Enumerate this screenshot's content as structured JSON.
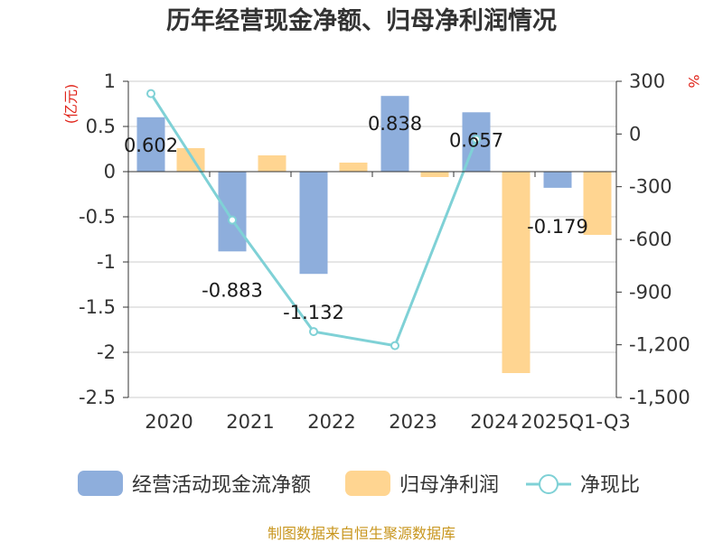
{
  "title": "历年经营现金净额、归母净利润情况",
  "source": "制图数据来自恒生聚源数据库",
  "chart_data": {
    "type": "bar",
    "categories": [
      "2020",
      "2021",
      "2022",
      "2023",
      "2024",
      "2025Q1-Q3"
    ],
    "series": [
      {
        "name": "经营活动现金流净额",
        "kind": "bar",
        "axis": "left",
        "color": "#8eaedc",
        "values": [
          0.602,
          -0.883,
          -1.132,
          0.838,
          0.657,
          -0.179
        ],
        "labels": [
          "0.602",
          "-0.883",
          "-1.132",
          "0.838",
          "0.657",
          "-0.179"
        ]
      },
      {
        "name": "归母净利润",
        "kind": "bar",
        "axis": "left",
        "color": "#ffd591",
        "values": [
          0.26,
          0.18,
          0.1,
          -0.06,
          -2.23,
          -0.7
        ]
      },
      {
        "name": "净现比",
        "kind": "line",
        "axis": "right",
        "color": "#7fd1d6",
        "values": [
          230,
          -490,
          -1125,
          -1205,
          -30,
          null
        ]
      }
    ],
    "left_axis": {
      "unit": "(亿元)",
      "min": -2.5,
      "max": 1,
      "ticks": [
        1,
        0.5,
        0,
        -0.5,
        -1,
        -1.5,
        -2,
        -2.5
      ],
      "tick_labels": [
        "1",
        "0.5",
        "0",
        "-0.5",
        "-1",
        "-1.5",
        "-2",
        "-2.5"
      ]
    },
    "right_axis": {
      "unit": "%",
      "min": -1500,
      "max": 300,
      "ticks": [
        300,
        0,
        -300,
        -600,
        -900,
        -1200,
        -1500
      ],
      "tick_labels": [
        "300",
        "0",
        "-300",
        "-600",
        "-900",
        "-1,200",
        "-1,500"
      ]
    },
    "grid": true,
    "legend_position": "bottom"
  }
}
